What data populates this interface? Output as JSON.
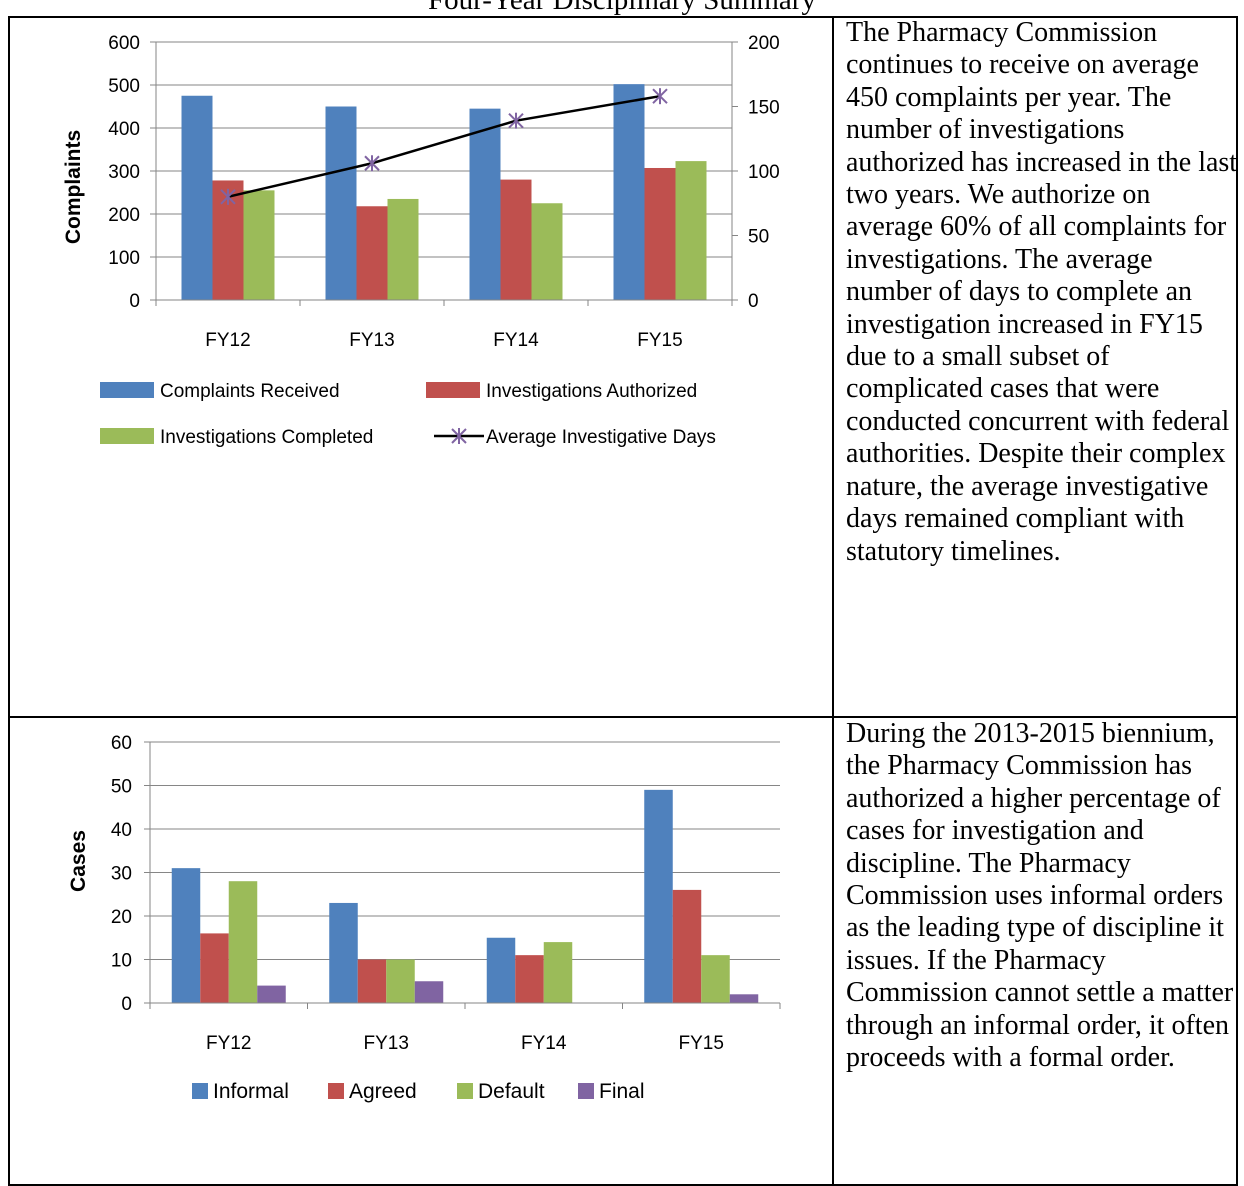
{
  "page": {
    "title": "Four-Year Disciplinary Summary",
    "paragraph_1": "The Pharmacy Commission continues to receive on average 450 complaints per year. The number of investigations authorized has increased in the last two years. We authorize on average 60% of all complaints for investigations. The average number of days to complete an investigation increased in FY15 due to a small subset of complicated cases that were conducted concurrent with federal authorities. Despite their complex nature, the average investigative days remained compliant with statutory timelines.",
    "paragraph_2": "During the 2013-2015 biennium, the Pharmacy Commission has authorized a higher percentage of cases for investigation and discipline. The Pharmacy Commission uses informal orders as the leading type of discipline it issues. If the Pharmacy Commission cannot settle a matter through an informal order, it often proceeds with a formal order."
  },
  "chart_data": [
    {
      "type": "bar",
      "categories": [
        "FY12",
        "FY13",
        "FY14",
        "FY15"
      ],
      "series": [
        {
          "name": "Complaints Received",
          "type": "bar",
          "axis": "left",
          "color": "#4F81BD",
          "values": [
            475,
            450,
            445,
            502
          ]
        },
        {
          "name": "Investigations Authorized",
          "type": "bar",
          "axis": "left",
          "color": "#C0504D",
          "values": [
            278,
            218,
            280,
            307
          ]
        },
        {
          "name": "Investigations Completed",
          "type": "bar",
          "axis": "left",
          "color": "#9BBB59",
          "values": [
            255,
            235,
            225,
            323
          ]
        },
        {
          "name": "Average Investigative Days",
          "type": "line",
          "axis": "right",
          "color": "#000000",
          "marker_color": "#8064A2",
          "values": [
            80,
            106,
            139,
            158
          ]
        }
      ],
      "xlabel": "",
      "ylabel": "Complaints",
      "ylim": [
        0,
        600
      ],
      "yticks": [
        "0",
        "100",
        "200",
        "300",
        "400",
        "500",
        "600"
      ],
      "y2lim": [
        0,
        200
      ],
      "y2ticks": [
        "0",
        "50",
        "100",
        "150",
        "200"
      ],
      "grid": true,
      "legend": "bottom"
    },
    {
      "type": "bar",
      "categories": [
        "FY12",
        "FY13",
        "FY14",
        "FY15"
      ],
      "series": [
        {
          "name": "Informal",
          "color": "#4F81BD",
          "values": [
            31,
            23,
            15,
            49
          ]
        },
        {
          "name": "Agreed",
          "color": "#C0504D",
          "values": [
            16,
            10,
            11,
            26
          ]
        },
        {
          "name": "Default",
          "color": "#9BBB59",
          "values": [
            28,
            10,
            14,
            11
          ]
        },
        {
          "name": "Final",
          "color": "#8064A2",
          "values": [
            4,
            5,
            0,
            2
          ]
        }
      ],
      "xlabel": "",
      "ylabel": "Cases",
      "ylim": [
        0,
        60
      ],
      "yticks": [
        "0",
        "10",
        "20",
        "30",
        "40",
        "50",
        "60"
      ],
      "grid": true,
      "legend": "bottom"
    }
  ]
}
